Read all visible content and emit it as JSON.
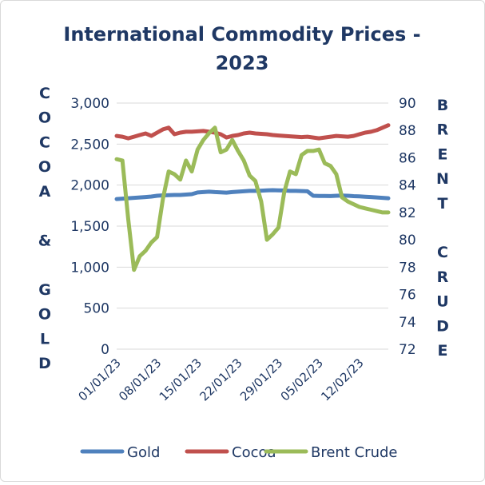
{
  "chart_data": {
    "type": "line",
    "title_lines": [
      "International Commodity Prices -",
      "2023"
    ],
    "ylabel_left": "COCOA & GOLD",
    "ylabel_right": "BRENT CRUDE",
    "ylim_left": [
      0,
      3000
    ],
    "ylim_right": [
      72,
      90
    ],
    "yticks_left": [
      "0",
      "500",
      "1,000",
      "1,500",
      "2,000",
      "2,500",
      "3,000"
    ],
    "yticks_right": [
      "72",
      "74",
      "76",
      "78",
      "80",
      "82",
      "84",
      "86",
      "88",
      "90"
    ],
    "x_dates": [
      "01/01/23",
      "02/01/23",
      "03/01/23",
      "04/01/23",
      "05/01/23",
      "06/01/23",
      "07/01/23",
      "08/01/23",
      "09/01/23",
      "10/01/23",
      "11/01/23",
      "12/01/23",
      "13/01/23",
      "14/01/23",
      "15/01/23",
      "16/01/23",
      "17/01/23",
      "18/01/23",
      "19/01/23",
      "20/01/23",
      "21/01/23",
      "22/01/23",
      "23/01/23",
      "24/01/23",
      "25/01/23",
      "26/01/23",
      "27/01/23",
      "28/01/23",
      "29/01/23",
      "30/01/23",
      "31/01/23",
      "01/02/23",
      "02/02/23",
      "03/02/23",
      "04/02/23",
      "05/02/23",
      "06/02/23",
      "07/02/23",
      "08/02/23",
      "09/02/23",
      "10/02/23",
      "11/02/23",
      "12/02/23",
      "13/02/23",
      "14/02/23",
      "15/02/23",
      "16/02/23",
      "17/02/23"
    ],
    "x_tick_labels": [
      "01/01/23",
      "08/01/23",
      "15/01/23",
      "22/01/23",
      "29/01/23",
      "05/02/23",
      "12/02/23"
    ],
    "series": [
      {
        "name": "Gold",
        "axis": "left",
        "color": "#4f81bd",
        "values": [
          1830,
          1835,
          1840,
          1845,
          1850,
          1855,
          1860,
          1870,
          1875,
          1878,
          1880,
          1880,
          1885,
          1890,
          1910,
          1915,
          1920,
          1915,
          1912,
          1908,
          1915,
          1920,
          1925,
          1930,
          1930,
          1932,
          1935,
          1938,
          1936,
          1934,
          1930,
          1930,
          1928,
          1925,
          1870,
          1868,
          1868,
          1866,
          1870,
          1872,
          1870,
          1865,
          1862,
          1858,
          1855,
          1850,
          1845,
          1840
        ]
      },
      {
        "name": "Cocoa",
        "axis": "left",
        "color": "#c0504d",
        "values": [
          2600,
          2590,
          2570,
          2590,
          2610,
          2630,
          2600,
          2640,
          2680,
          2700,
          2620,
          2640,
          2650,
          2650,
          2655,
          2660,
          2650,
          2640,
          2620,
          2580,
          2600,
          2610,
          2630,
          2640,
          2630,
          2625,
          2620,
          2610,
          2605,
          2600,
          2595,
          2590,
          2585,
          2590,
          2580,
          2570,
          2580,
          2590,
          2600,
          2595,
          2590,
          2600,
          2620,
          2640,
          2650,
          2670,
          2700,
          2730
        ]
      },
      {
        "name": "Brent Crude",
        "axis": "right",
        "color": "#9bbb59",
        "values": [
          85.9,
          85.8,
          81.5,
          77.8,
          78.8,
          79.2,
          79.8,
          80.2,
          83.0,
          85.0,
          84.8,
          84.4,
          85.8,
          85.0,
          86.6,
          87.3,
          87.8,
          88.2,
          86.4,
          86.6,
          87.3,
          86.5,
          85.8,
          84.7,
          84.3,
          82.8,
          80.0,
          80.4,
          80.9,
          83.5,
          85.0,
          84.8,
          86.2,
          86.5,
          86.5,
          86.6,
          85.6,
          85.4,
          84.8,
          83.1,
          82.8,
          82.6,
          82.4,
          82.3,
          82.2,
          82.1,
          82.0,
          82.0
        ]
      }
    ],
    "legend_position": "bottom",
    "grid": true
  }
}
